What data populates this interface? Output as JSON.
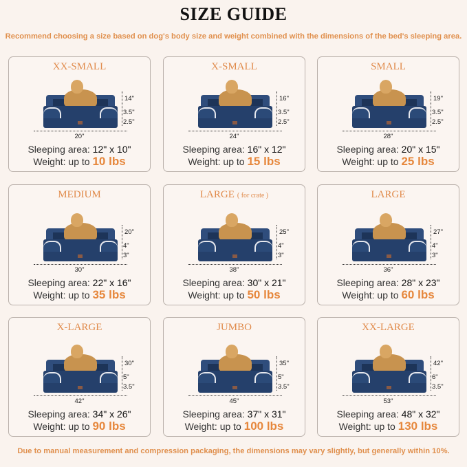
{
  "header": {
    "title": "SIZE GUIDE",
    "subtitle": "Recommend choosing a size based on dog's body size and weight combined with the dimensions of the bed's sleeping area."
  },
  "footer": {
    "note": "Due to manual measurement and compression packaging, the dimensions may vary slightly, but generally within 10%."
  },
  "labels": {
    "sleeping_area": "Sleeping area:",
    "weight": "Weight:  up to"
  },
  "colors": {
    "accent": "#e6873c",
    "bed": "#25406b",
    "background": "#faf3ee"
  },
  "sizes": [
    {
      "name": "XX-SMALL",
      "note": "",
      "pet": "cat",
      "height": "14\"",
      "bolster": "3.5\"",
      "base": "2.5\"",
      "width": "20\"",
      "sleeping_area": "12\" x 10\"",
      "weight": "10 lbs"
    },
    {
      "name": "X-SMALL",
      "note": "",
      "pet": "small dog",
      "height": "16\"",
      "bolster": "3.5\"",
      "base": "2.5\"",
      "width": "24\"",
      "sleeping_area": "16\" x 12\"",
      "weight": "15 lbs"
    },
    {
      "name": "SMALL",
      "note": "",
      "pet": "french bulldog",
      "height": "19\"",
      "bolster": "3.5\"",
      "base": "2.5\"",
      "width": "28\"",
      "sleeping_area": "20\" x 15\"",
      "weight": "25 lbs"
    },
    {
      "name": "MEDIUM",
      "note": "",
      "pet": "corgi",
      "height": "20\"",
      "bolster": "4\"",
      "base": "3\"",
      "width": "30\"",
      "sleeping_area": "22\" x 16\"",
      "weight": "35 lbs"
    },
    {
      "name": "LARGE",
      "note": "( for crate )",
      "pet": "shiba inu",
      "height": "25\"",
      "bolster": "4\"",
      "base": "3\"",
      "width": "38\"",
      "sleeping_area": "30\" x 21\"",
      "weight": "50 lbs"
    },
    {
      "name": "LARGE",
      "note": "",
      "pet": "shepherd",
      "height": "27\"",
      "bolster": "4\"",
      "base": "3\"",
      "width": "36\"",
      "sleeping_area": "28\" x 23\"",
      "weight": "60 lbs"
    },
    {
      "name": "X-LARGE",
      "note": "",
      "pet": "golden retriever",
      "height": "30\"",
      "bolster": "5\"",
      "base": "3.5\"",
      "width": "42\"",
      "sleeping_area": "34\" x 26\"",
      "weight": "90 lbs"
    },
    {
      "name": "JUMBO",
      "note": "",
      "pet": "labrador",
      "height": "35\"",
      "bolster": "5\"",
      "base": "3.5\"",
      "width": "45\"",
      "sleeping_area": "37\" x 31\"",
      "weight": "100 lbs"
    },
    {
      "name": "XX-LARGE",
      "note": "",
      "pet": "rottweiler",
      "height": "42\"",
      "bolster": "6\"",
      "base": "3.5\"",
      "width": "53\"",
      "sleeping_area": "48\" x 32\"",
      "weight": "130 lbs"
    }
  ]
}
